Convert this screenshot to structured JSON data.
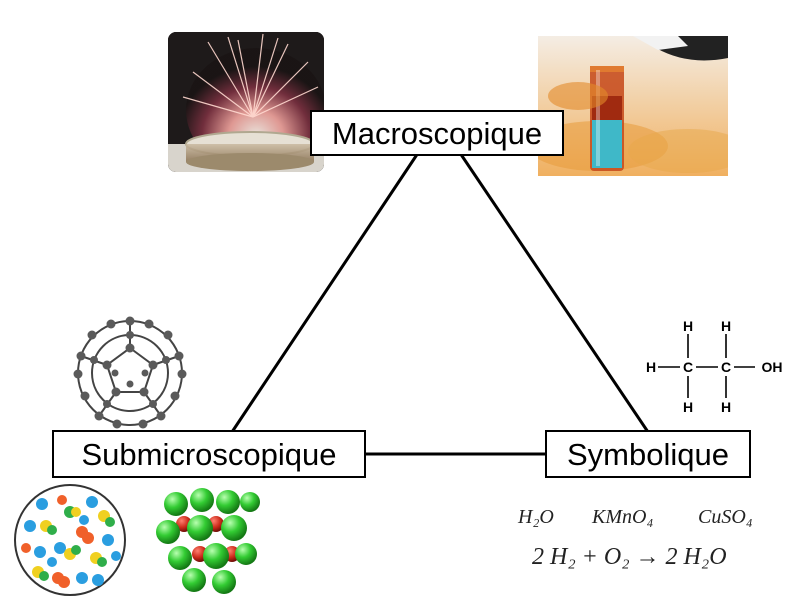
{
  "nodes": {
    "macro": "Macroscopique",
    "submicro": "Submicroscopique",
    "symbolic": "Symbolique"
  },
  "structural_formula": {
    "h": "H",
    "c": "C",
    "oh": "OH"
  },
  "formulas": {
    "water": "H₂O",
    "kmno4": "KMnO₄",
    "cuso4": "CuSO₄",
    "equation": "2 H₂ + O₂ → 2 H₂O"
  },
  "colors": {
    "line": "#000000",
    "carbon": "#555555",
    "green_atom": "#33cc33",
    "red_atom": "#cc2a1a",
    "dot_blue": "#2a9ee0",
    "dot_orange": "#f0602a",
    "dot_yellow": "#f0d020",
    "dot_green": "#2fae4a"
  }
}
